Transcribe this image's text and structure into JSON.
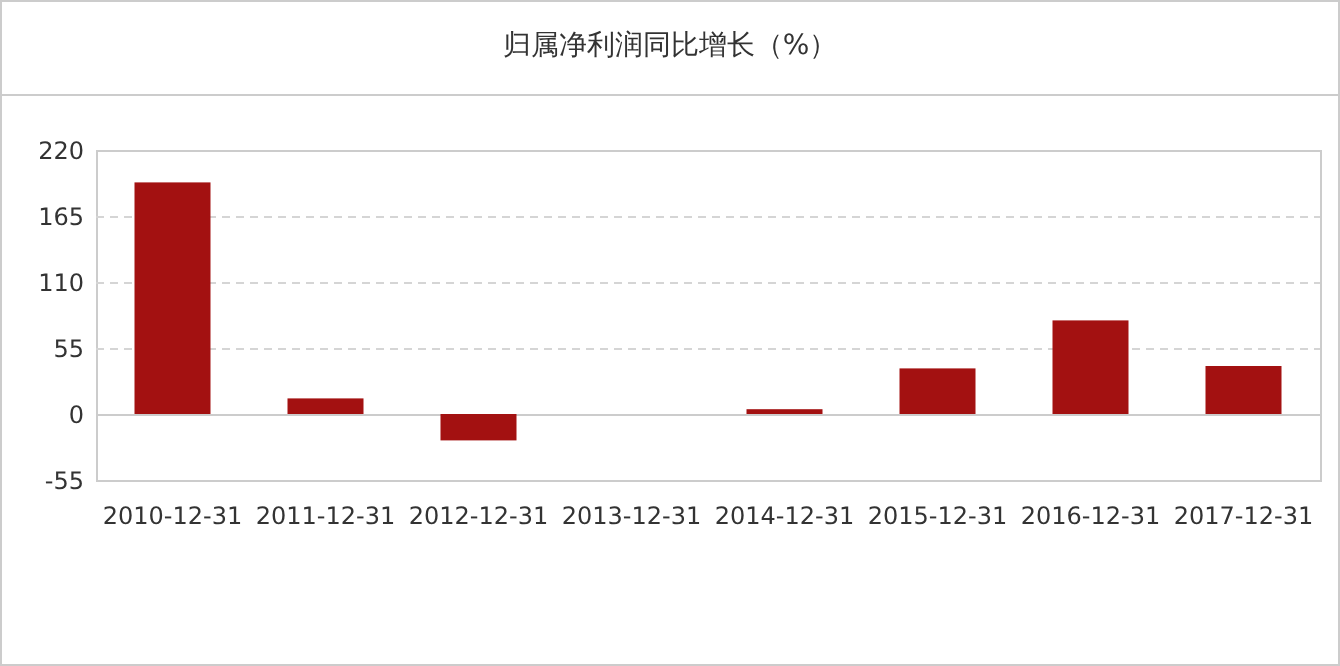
{
  "chart_data": {
    "type": "bar",
    "title": "归属净利润同比增长（%）",
    "categories": [
      "2010-12-31",
      "2011-12-31",
      "2012-12-31",
      "2013-12-31",
      "2014-12-31",
      "2015-12-31",
      "2016-12-31",
      "2017-12-31"
    ],
    "values": [
      193,
      13,
      -22,
      null,
      4,
      38,
      78,
      40
    ],
    "color": "#a31111",
    "ylim": [
      -55,
      220
    ],
    "yticks": [
      -55,
      0,
      55,
      110,
      165,
      220
    ],
    "grid": "y"
  }
}
